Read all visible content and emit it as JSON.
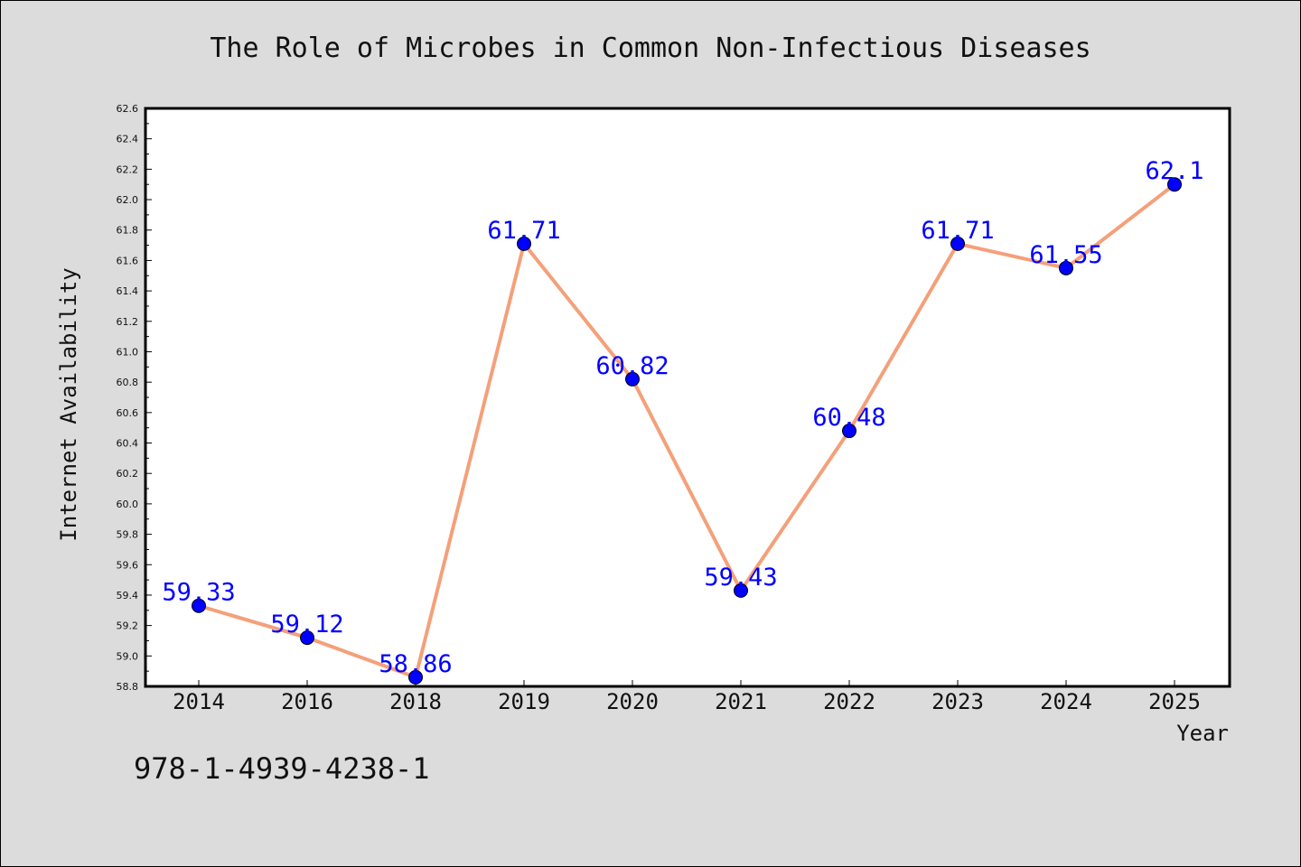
{
  "chart_data": {
    "type": "line",
    "title": "The Role of Microbes in Common Non-Infectious Diseases",
    "xlabel": "Year",
    "ylabel": "Internet Availability",
    "categories": [
      "2014",
      "2016",
      "2018",
      "2019",
      "2020",
      "2021",
      "2022",
      "2023",
      "2024",
      "2025"
    ],
    "values": [
      59.33,
      59.12,
      58.86,
      61.71,
      60.82,
      59.43,
      60.48,
      61.71,
      61.55,
      62.1
    ],
    "data_labels": [
      "59.33",
      "59.12",
      "58.86",
      "61.71",
      "60.82",
      "59.43",
      "60.48",
      "61.71",
      "61.55",
      "62.1"
    ],
    "ylim": [
      58.8,
      62.6
    ],
    "yticks": [
      "58.8",
      "59.0",
      "59.2",
      "59.4",
      "59.6",
      "59.8",
      "60.0",
      "60.2",
      "60.4",
      "60.6",
      "60.8",
      "61.0",
      "61.2",
      "61.4",
      "61.6",
      "61.8",
      "62.0",
      "62.2",
      "62.4",
      "62.6"
    ],
    "grid": false,
    "line_color": "#f4a07a",
    "marker_color": "#0000ff",
    "label_color": "#0000ff",
    "plot_background": "#ffffff",
    "figure_background": "#dcdcdc"
  },
  "footer_text": "978-1-4939-4238-1"
}
